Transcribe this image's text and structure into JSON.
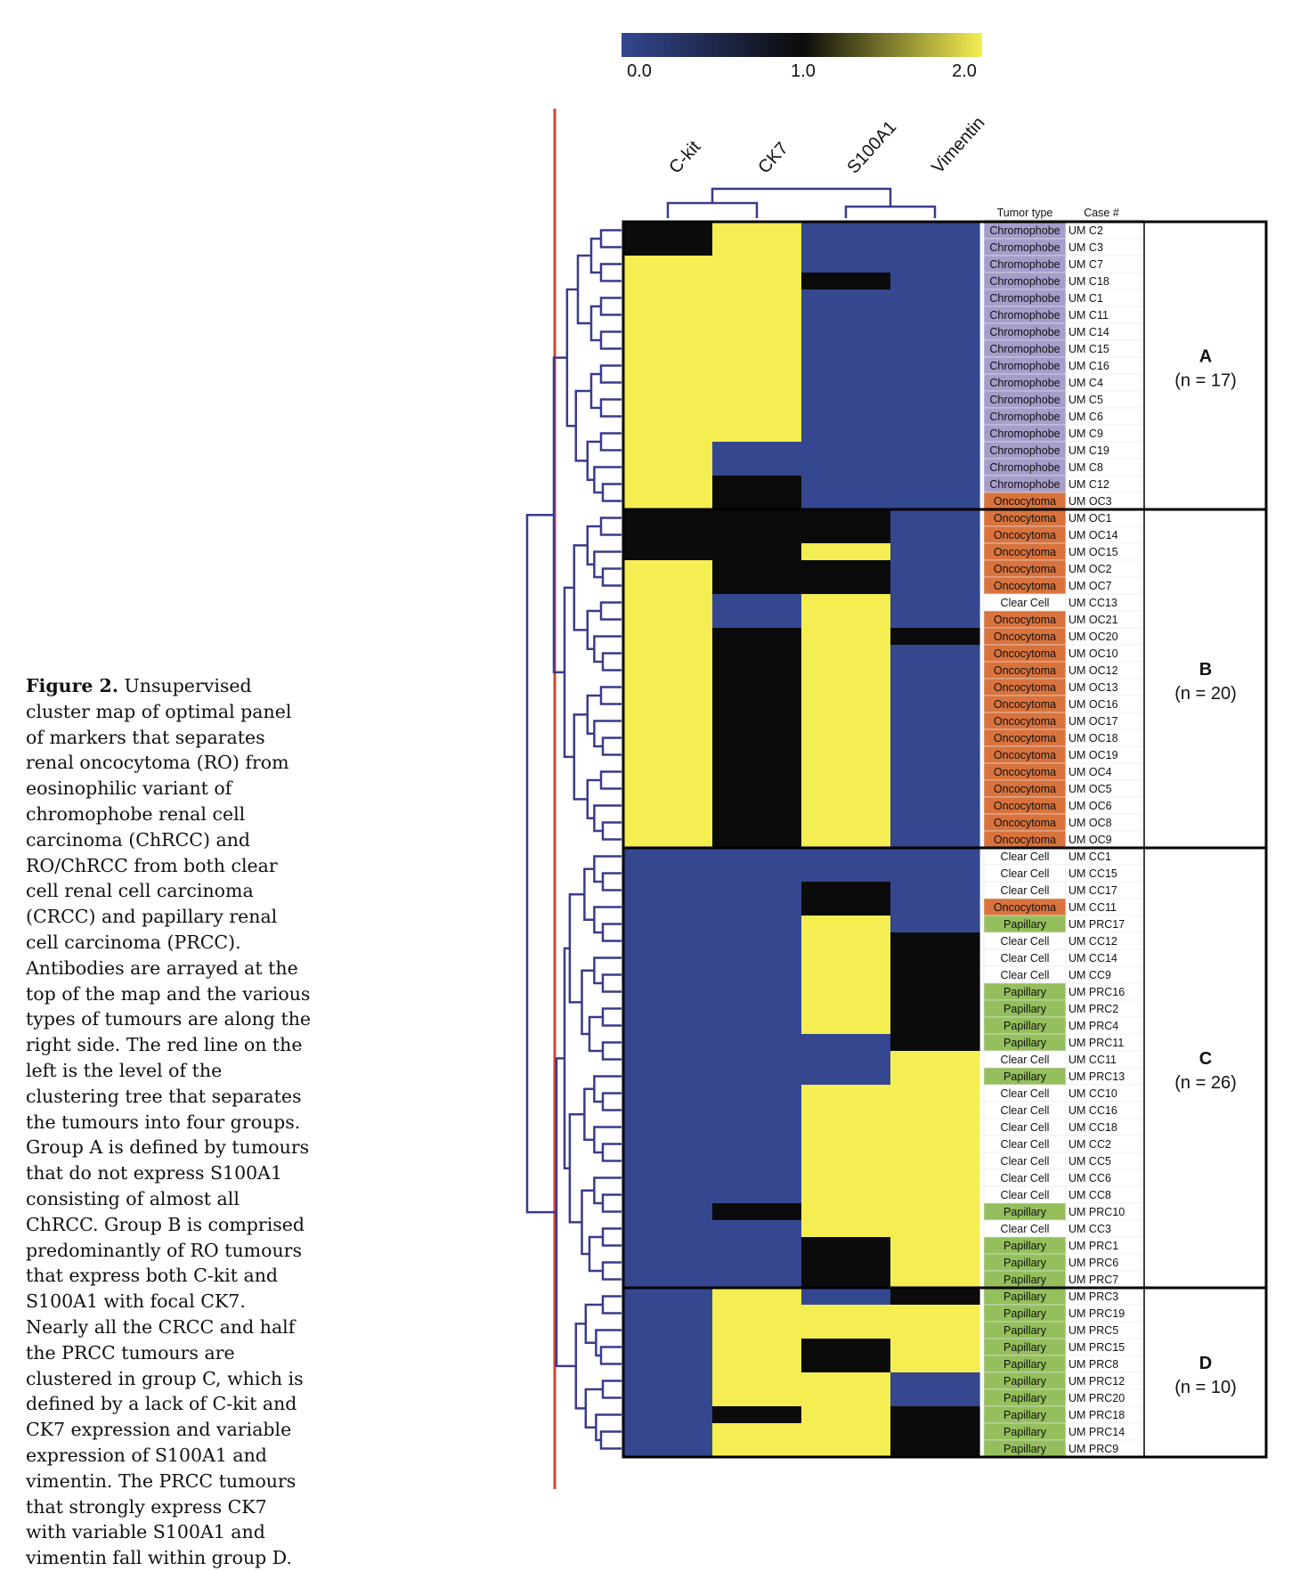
{
  "caption": {
    "label": "Figure 2.",
    "text": " Unsupervised cluster map of optimal panel of markers that separates renal oncocytoma (RO) from eosinophilic variant of chromophobe renal cell carcinoma (ChRCC) and RO/ChRCC from both clear cell renal cell carcinoma (CRCC) and papillary renal cell carcinoma (PRCC). Antibodies are arrayed at the top of the map and the various types of tumours are along the right side. The red line on the left is the level of the clustering tree that separates the tumours into four groups. Group A is defined by tumours that do not express S100A1 consisting of almost all ChRCC. Group B is comprised predominantly of RO tumours that express both C-kit and S100A1 with focal CK7. Nearly all the CRCC and half the PRCC tumours are clustered in group C, which is defined by a lack of C-kit and CK7 expression and variable expression of S100A1 and vimentin. The PRCC tumours that strongly express CK7 with variable S100A1 and vimentin fall within group D."
  },
  "colors": {
    "low": "#34478f",
    "mid": "#0b0b0b",
    "high": "#f4ee52",
    "dendrogram": "#3a3a8c",
    "cut_line": "#d8402c",
    "type_chromophobe": "#a79dcb",
    "type_oncocytoma": "#d9733d",
    "type_papillary": "#95bf5c",
    "type_clear": "#ffffff"
  },
  "chart_data": {
    "type": "heatmap",
    "colorbar": {
      "min": 0.0,
      "max": 2.0,
      "ticks": [
        "0.0",
        "1.0",
        "2.0"
      ]
    },
    "columns": [
      "C-kit",
      "CK7",
      "S100A1",
      "Vimentin"
    ],
    "table_headers": {
      "tumor_type": "Tumor type",
      "case": "Case #"
    },
    "groups": [
      {
        "id": "A",
        "label": "A",
        "n_text": "(n = 17)",
        "n": 17,
        "start": 0,
        "end": 17
      },
      {
        "id": "B",
        "label": "B",
        "n_text": "(n = 20)",
        "n": 20,
        "start": 17,
        "end": 37
      },
      {
        "id": "C",
        "label": "C",
        "n_text": "(n = 26)",
        "n": 26,
        "start": 37,
        "end": 63
      },
      {
        "id": "D",
        "label": "D",
        "n_text": "(n = 10)",
        "n": 10,
        "start": 63,
        "end": 73
      }
    ],
    "rows": [
      {
        "type": "Chromophobe",
        "case": "UM C2",
        "values": [
          1,
          2,
          0,
          0
        ]
      },
      {
        "type": "Chromophobe",
        "case": "UM C3",
        "values": [
          1,
          2,
          0,
          0
        ]
      },
      {
        "type": "Chromophobe",
        "case": "UM C7",
        "values": [
          2,
          2,
          0,
          0
        ]
      },
      {
        "type": "Chromophobe",
        "case": "UM C18",
        "values": [
          2,
          2,
          1,
          0
        ]
      },
      {
        "type": "Chromophobe",
        "case": "UM C1",
        "values": [
          2,
          2,
          0,
          0
        ]
      },
      {
        "type": "Chromophobe",
        "case": "UM C11",
        "values": [
          2,
          2,
          0,
          0
        ]
      },
      {
        "type": "Chromophobe",
        "case": "UM C14",
        "values": [
          2,
          2,
          0,
          0
        ]
      },
      {
        "type": "Chromophobe",
        "case": "UM C15",
        "values": [
          2,
          2,
          0,
          0
        ]
      },
      {
        "type": "Chromophobe",
        "case": "UM C16",
        "values": [
          2,
          2,
          0,
          0
        ]
      },
      {
        "type": "Chromophobe",
        "case": "UM C4",
        "values": [
          2,
          2,
          0,
          0
        ]
      },
      {
        "type": "Chromophobe",
        "case": "UM C5",
        "values": [
          2,
          2,
          0,
          0
        ]
      },
      {
        "type": "Chromophobe",
        "case": "UM C6",
        "values": [
          2,
          2,
          0,
          0
        ]
      },
      {
        "type": "Chromophobe",
        "case": "UM C9",
        "values": [
          2,
          2,
          0,
          0
        ]
      },
      {
        "type": "Chromophobe",
        "case": "UM C19",
        "values": [
          2,
          0,
          0,
          0
        ]
      },
      {
        "type": "Chromophobe",
        "case": "UM C8",
        "values": [
          2,
          0,
          0,
          0
        ]
      },
      {
        "type": "Chromophobe",
        "case": "UM C12",
        "values": [
          2,
          1,
          0,
          0
        ]
      },
      {
        "type": "Oncocytoma",
        "case": "UM OC3",
        "values": [
          2,
          1,
          0,
          0
        ]
      },
      {
        "type": "Oncocytoma",
        "case": "UM OC1",
        "values": [
          1,
          1,
          1,
          0
        ]
      },
      {
        "type": "Oncocytoma",
        "case": "UM OC14",
        "values": [
          1,
          1,
          1,
          0
        ]
      },
      {
        "type": "Oncocytoma",
        "case": "UM OC15",
        "values": [
          1,
          1,
          2,
          0
        ]
      },
      {
        "type": "Oncocytoma",
        "case": "UM OC2",
        "values": [
          2,
          1,
          1,
          0
        ]
      },
      {
        "type": "Oncocytoma",
        "case": "UM OC7",
        "values": [
          2,
          1,
          1,
          0
        ]
      },
      {
        "type": "Clear Cell",
        "case": "UM CC13",
        "values": [
          2,
          0,
          2,
          0
        ]
      },
      {
        "type": "Oncocytoma",
        "case": "UM OC21",
        "values": [
          2,
          0,
          2,
          0
        ]
      },
      {
        "type": "Oncocytoma",
        "case": "UM OC20",
        "values": [
          2,
          1,
          2,
          1
        ]
      },
      {
        "type": "Oncocytoma",
        "case": "UM OC10",
        "values": [
          2,
          1,
          2,
          0
        ]
      },
      {
        "type": "Oncocytoma",
        "case": "UM OC12",
        "values": [
          2,
          1,
          2,
          0
        ]
      },
      {
        "type": "Oncocytoma",
        "case": "UM OC13",
        "values": [
          2,
          1,
          2,
          0
        ]
      },
      {
        "type": "Oncocytoma",
        "case": "UM OC16",
        "values": [
          2,
          1,
          2,
          0
        ]
      },
      {
        "type": "Oncocytoma",
        "case": "UM OC17",
        "values": [
          2,
          1,
          2,
          0
        ]
      },
      {
        "type": "Oncocytoma",
        "case": "UM OC18",
        "values": [
          2,
          1,
          2,
          0
        ]
      },
      {
        "type": "Oncocytoma",
        "case": "UM OC19",
        "values": [
          2,
          1,
          2,
          0
        ]
      },
      {
        "type": "Oncocytoma",
        "case": "UM OC4",
        "values": [
          2,
          1,
          2,
          0
        ]
      },
      {
        "type": "Oncocytoma",
        "case": "UM OC5",
        "values": [
          2,
          1,
          2,
          0
        ]
      },
      {
        "type": "Oncocytoma",
        "case": "UM OC6",
        "values": [
          2,
          1,
          2,
          0
        ]
      },
      {
        "type": "Oncocytoma",
        "case": "UM OC8",
        "values": [
          2,
          1,
          2,
          0
        ]
      },
      {
        "type": "Oncocytoma",
        "case": "UM OC9",
        "values": [
          2,
          1,
          2,
          0
        ]
      },
      {
        "type": "Clear Cell",
        "case": "UM CC1",
        "values": [
          0,
          0,
          0,
          0
        ]
      },
      {
        "type": "Clear Cell",
        "case": "UM CC15",
        "values": [
          0,
          0,
          0,
          0
        ]
      },
      {
        "type": "Clear Cell",
        "case": "UM CC17",
        "values": [
          0,
          0,
          1,
          0
        ]
      },
      {
        "type": "Oncocytoma",
        "case": "UM CC11",
        "values": [
          0,
          0,
          1,
          0
        ]
      },
      {
        "type": "Papillary",
        "case": "UM PRC17",
        "values": [
          0,
          0,
          2,
          0
        ]
      },
      {
        "type": "Clear Cell",
        "case": "UM CC12",
        "values": [
          0,
          0,
          2,
          1
        ]
      },
      {
        "type": "Clear Cell",
        "case": "UM CC14",
        "values": [
          0,
          0,
          2,
          1
        ]
      },
      {
        "type": "Clear Cell",
        "case": "UM CC9",
        "values": [
          0,
          0,
          2,
          1
        ]
      },
      {
        "type": "Papillary",
        "case": "UM PRC16",
        "values": [
          0,
          0,
          2,
          1
        ]
      },
      {
        "type": "Papillary",
        "case": "UM PRC2",
        "values": [
          0,
          0,
          2,
          1
        ]
      },
      {
        "type": "Papillary",
        "case": "UM PRC4",
        "values": [
          0,
          0,
          2,
          1
        ]
      },
      {
        "type": "Papillary",
        "case": "UM PRC11",
        "values": [
          0,
          0,
          0,
          1
        ]
      },
      {
        "type": "Clear Cell",
        "case": "UM CC11",
        "values": [
          0,
          0,
          0,
          2
        ]
      },
      {
        "type": "Papillary",
        "case": "UM PRC13",
        "values": [
          0,
          0,
          0,
          2
        ]
      },
      {
        "type": "Clear Cell",
        "case": "UM CC10",
        "values": [
          0,
          0,
          2,
          2
        ]
      },
      {
        "type": "Clear Cell",
        "case": "UM CC16",
        "values": [
          0,
          0,
          2,
          2
        ]
      },
      {
        "type": "Clear Cell",
        "case": "UM CC18",
        "values": [
          0,
          0,
          2,
          2
        ]
      },
      {
        "type": "Clear Cell",
        "case": "UM CC2",
        "values": [
          0,
          0,
          2,
          2
        ]
      },
      {
        "type": "Clear Cell",
        "case": "UM CC5",
        "values": [
          0,
          0,
          2,
          2
        ]
      },
      {
        "type": "Clear Cell",
        "case": "UM CC6",
        "values": [
          0,
          0,
          2,
          2
        ]
      },
      {
        "type": "Clear Cell",
        "case": "UM CC8",
        "values": [
          0,
          0,
          2,
          2
        ]
      },
      {
        "type": "Papillary",
        "case": "UM PRC10",
        "values": [
          0,
          1,
          2,
          2
        ]
      },
      {
        "type": "Clear Cell",
        "case": "UM CC3",
        "values": [
          0,
          0,
          2,
          2
        ]
      },
      {
        "type": "Papillary",
        "case": "UM PRC1",
        "values": [
          0,
          0,
          1,
          2
        ]
      },
      {
        "type": "Papillary",
        "case": "UM PRC6",
        "values": [
          0,
          0,
          1,
          2
        ]
      },
      {
        "type": "Papillary",
        "case": "UM PRC7",
        "values": [
          0,
          0,
          1,
          2
        ]
      },
      {
        "type": "Papillary",
        "case": "UM PRC3",
        "values": [
          0,
          2,
          0,
          1
        ]
      },
      {
        "type": "Papillary",
        "case": "UM PRC19",
        "values": [
          0,
          2,
          2,
          2
        ]
      },
      {
        "type": "Papillary",
        "case": "UM PRC5",
        "values": [
          0,
          2,
          2,
          2
        ]
      },
      {
        "type": "Papillary",
        "case": "UM PRC15",
        "values": [
          0,
          2,
          1,
          2
        ]
      },
      {
        "type": "Papillary",
        "case": "UM PRC8",
        "values": [
          0,
          2,
          1,
          2
        ]
      },
      {
        "type": "Papillary",
        "case": "UM PRC12",
        "values": [
          0,
          2,
          2,
          0
        ]
      },
      {
        "type": "Papillary",
        "case": "UM PRC20",
        "values": [
          0,
          2,
          2,
          0
        ]
      },
      {
        "type": "Papillary",
        "case": "UM PRC18",
        "values": [
          0,
          1,
          2,
          1
        ]
      },
      {
        "type": "Papillary",
        "case": "UM PRC14",
        "values": [
          0,
          2,
          2,
          1
        ]
      },
      {
        "type": "Papillary",
        "case": "UM PRC9",
        "values": [
          0,
          2,
          2,
          1
        ]
      }
    ]
  }
}
